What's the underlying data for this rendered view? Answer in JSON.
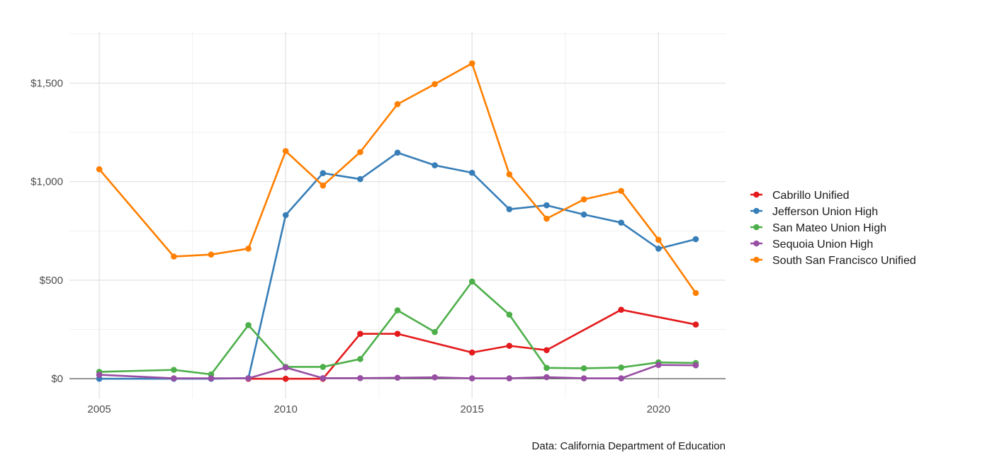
{
  "chart_data": {
    "type": "line",
    "x_ticks": [
      2005,
      2010,
      2015,
      2020
    ],
    "x_tick_labels": [
      "2005",
      "2010",
      "2015",
      "2020"
    ],
    "xlim": [
      2004.2,
      2021.8
    ],
    "y_ticks": [
      0,
      500,
      1000,
      1500
    ],
    "y_tick_labels": [
      "$0",
      "$500",
      "$1,000",
      "$1,500"
    ],
    "ylim": [
      -100,
      1760
    ],
    "grid": true,
    "legend_position": "right",
    "caption": "Data: California Department of Education",
    "series": [
      {
        "name": "Cabrillo Unified",
        "color": "#e41a1c",
        "x": [
          2009,
          2010,
          2011,
          2012,
          2013,
          2015,
          2016,
          2017,
          2019,
          2021
        ],
        "y": [
          0,
          0,
          0,
          228,
          228,
          133,
          167,
          145,
          350,
          275
        ]
      },
      {
        "name": "Jefferson Union High",
        "color": "#377eb8",
        "x": [
          2005,
          2007,
          2008,
          2009,
          2010,
          2011,
          2012,
          2013,
          2014,
          2015,
          2016,
          2017,
          2018,
          2019,
          2020,
          2021
        ],
        "y": [
          0,
          0,
          0,
          3,
          830,
          1043,
          1013,
          1147,
          1083,
          1045,
          860,
          880,
          833,
          792,
          660,
          708
        ]
      },
      {
        "name": "San Mateo Union High",
        "color": "#4daf4a",
        "x": [
          2005,
          2007,
          2008,
          2009,
          2010,
          2011,
          2012,
          2013,
          2014,
          2015,
          2016,
          2017,
          2018,
          2019,
          2020,
          2021
        ],
        "y": [
          35,
          45,
          22,
          272,
          60,
          60,
          100,
          347,
          237,
          493,
          325,
          55,
          53,
          57,
          83,
          80
        ]
      },
      {
        "name": "Sequoia Union High",
        "color": "#984ea3",
        "x": [
          2005,
          2007,
          2008,
          2009,
          2010,
          2011,
          2012,
          2013,
          2014,
          2015,
          2016,
          2017,
          2018,
          2019,
          2020,
          2021
        ],
        "y": [
          20,
          2,
          2,
          2,
          57,
          3,
          3,
          5,
          7,
          2,
          2,
          8,
          2,
          2,
          70,
          68
        ]
      },
      {
        "name": "South San Francisco Unified",
        "color": "#ff7f00",
        "x": [
          2005,
          2007,
          2008,
          2009,
          2010,
          2011,
          2012,
          2013,
          2014,
          2015,
          2016,
          2017,
          2018,
          2019,
          2020,
          2021
        ],
        "y": [
          1063,
          620,
          630,
          660,
          1155,
          980,
          1150,
          1393,
          1495,
          1600,
          1037,
          812,
          910,
          953,
          705,
          435
        ]
      }
    ]
  }
}
